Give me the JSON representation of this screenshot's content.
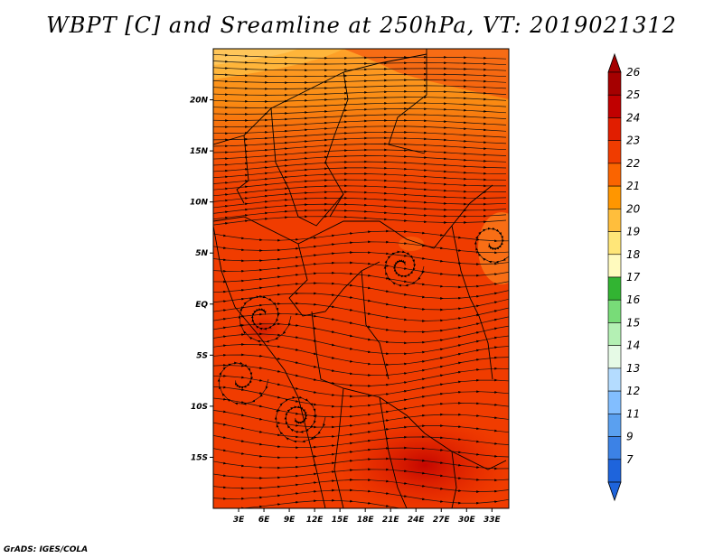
{
  "title": "WBPT [C] and Sreamline at 250hPa, VT: 2019021312",
  "footer": "GrADS: IGES/COLA",
  "map": {
    "lon_range": [
      0,
      35
    ],
    "lat_range": [
      -20,
      25
    ],
    "lat_ticks": [
      {
        "value": 20,
        "label": "20N"
      },
      {
        "value": 15,
        "label": "15N"
      },
      {
        "value": 10,
        "label": "10N"
      },
      {
        "value": 5,
        "label": "5N"
      },
      {
        "value": 0,
        "label": "EQ"
      },
      {
        "value": -5,
        "label": "5S"
      },
      {
        "value": -10,
        "label": "10S"
      },
      {
        "value": -15,
        "label": "15S"
      }
    ],
    "lon_ticks": [
      {
        "value": 3,
        "label": "3E"
      },
      {
        "value": 6,
        "label": "6E"
      },
      {
        "value": 9,
        "label": "9E"
      },
      {
        "value": 12,
        "label": "12E"
      },
      {
        "value": 15,
        "label": "15E"
      },
      {
        "value": 18,
        "label": "18E"
      },
      {
        "value": 21,
        "label": "21E"
      },
      {
        "value": 24,
        "label": "24E"
      },
      {
        "value": 27,
        "label": "27E"
      },
      {
        "value": 30,
        "label": "30E"
      },
      {
        "value": 33,
        "label": "33E"
      }
    ]
  },
  "colorbar": {
    "levels": [
      {
        "label": "26",
        "color": "#a50000"
      },
      {
        "label": "25",
        "color": "#c00000"
      },
      {
        "label": "24",
        "color": "#e11e00"
      },
      {
        "label": "23",
        "color": "#f03c00"
      },
      {
        "label": "22",
        "color": "#fa6400"
      },
      {
        "label": "21",
        "color": "#ff9600"
      },
      {
        "label": "20",
        "color": "#ffbe3c"
      },
      {
        "label": "19",
        "color": "#ffe678"
      },
      {
        "label": "18",
        "color": "#fffabe"
      },
      {
        "label": "17",
        "color": "#32b432"
      },
      {
        "label": "16",
        "color": "#78dc78"
      },
      {
        "label": "15",
        "color": "#b4f0b4"
      },
      {
        "label": "14",
        "color": "#e6fae6"
      },
      {
        "label": "13",
        "color": "#b4dcff"
      },
      {
        "label": "12",
        "color": "#82beff"
      },
      {
        "label": "11",
        "color": "#5aa0f0"
      },
      {
        "label": "9",
        "color": "#3c82e6"
      },
      {
        "label": "7",
        "color": "#1e64dc"
      }
    ],
    "bottom_color": "#1e64dc",
    "top_color": "#a50000"
  }
}
